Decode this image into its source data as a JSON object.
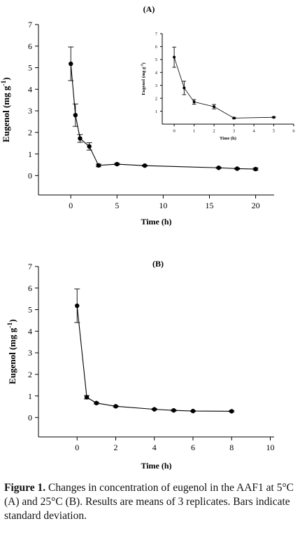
{
  "chart_data": [
    {
      "type": "line",
      "panel_label": "(A)",
      "xlabel": "Time (h)",
      "ylabel": "Eugenol (mg g",
      "ylabel_sup": "-1",
      "ylabel_close": ")",
      "xlim": [
        -3.5,
        22
      ],
      "ylim": [
        -0.9,
        7
      ],
      "xticks": [
        0,
        5,
        10,
        15,
        20
      ],
      "yticks": [
        0,
        1,
        2,
        3,
        4,
        5,
        6,
        7
      ],
      "grid": false,
      "x": [
        0,
        0.5,
        1,
        2,
        3,
        5,
        8,
        16,
        18,
        20
      ],
      "y": [
        5.18,
        2.8,
        1.72,
        1.35,
        0.47,
        0.53,
        0.46,
        0.36,
        0.32,
        0.3
      ],
      "err": [
        0.78,
        0.52,
        0.18,
        0.17,
        0.06,
        0.04,
        0.03,
        0.03,
        0.03,
        0.05
      ],
      "inset": {
        "type": "line",
        "xlabel": "Time (h)",
        "ylabel": "Eugenol (mg g",
        "ylabel_sup": "-1",
        "ylabel_close": ")",
        "xlim": [
          -0.6,
          6
        ],
        "ylim": [
          0,
          7
        ],
        "xticks": [
          0,
          1,
          2,
          3,
          4,
          5,
          6
        ],
        "yticks": [
          1,
          2,
          3,
          4,
          5,
          6,
          7
        ],
        "x": [
          0,
          0.5,
          1,
          2,
          3,
          5
        ],
        "y": [
          5.18,
          2.8,
          1.72,
          1.35,
          0.47,
          0.53
        ],
        "err": [
          0.78,
          0.52,
          0.18,
          0.17,
          0.06,
          0.04
        ]
      }
    },
    {
      "type": "line",
      "panel_label": "(B)",
      "xlabel": "Time (h)",
      "ylabel": "Eugenol (mg g",
      "ylabel_sup": "-1",
      "ylabel_close": ")",
      "xlim": [
        -2,
        10.2
      ],
      "ylim": [
        -0.9,
        7
      ],
      "xticks": [
        0,
        2,
        4,
        6,
        8,
        10
      ],
      "yticks": [
        0,
        1,
        2,
        3,
        4,
        5,
        6,
        7
      ],
      "grid": false,
      "x": [
        0,
        0.5,
        1,
        2,
        4,
        5,
        6,
        8
      ],
      "y": [
        5.18,
        0.94,
        0.67,
        0.52,
        0.38,
        0.33,
        0.3,
        0.29
      ],
      "err": [
        0.78,
        0.08,
        0.04,
        0.03,
        0.03,
        0.03,
        0.02,
        0.03
      ]
    }
  ],
  "caption": {
    "label": "Figure 1.",
    "text": " Changes in concentration of eugenol in the AAF1 at 5°C (A) and 25°C (B). Results are means of 3 replicates. Bars indicate standard deviation."
  }
}
